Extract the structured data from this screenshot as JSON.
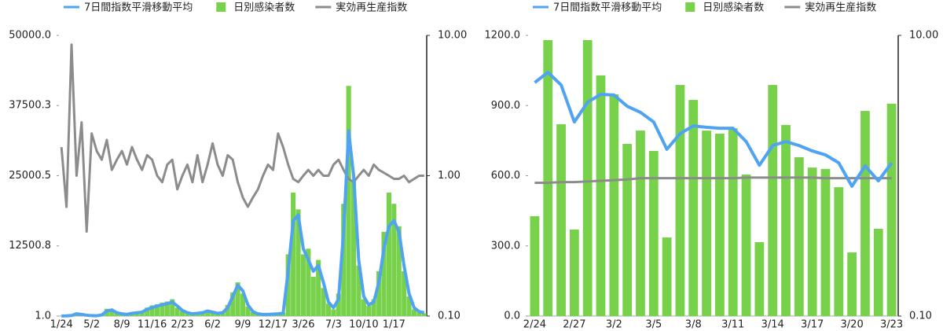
{
  "chart_data": [
    {
      "type": "bar_line_combo",
      "categories": [
        "1/24",
        null,
        null,
        null,
        null,
        null,
        "5/2",
        null,
        null,
        null,
        null,
        null,
        "8/9",
        null,
        null,
        null,
        null,
        null,
        "11/16",
        null,
        null,
        null,
        null,
        null,
        "2/23",
        null,
        null,
        null,
        null,
        null,
        "6/2",
        null,
        null,
        null,
        null,
        null,
        "9/9",
        null,
        null,
        null,
        null,
        null,
        "12/17",
        null,
        null,
        null,
        null,
        null,
        "3/26",
        null,
        null,
        null,
        null,
        null,
        "7/3",
        null,
        null,
        null,
        null,
        null,
        "10/10",
        null,
        null,
        null,
        null,
        null,
        "1/17",
        null,
        null,
        null,
        null,
        null,
        null
      ],
      "series": [
        {
          "name": "7日間指数平滑移動平均",
          "color": "#4fa3f0",
          "kind": "line",
          "values": [
            10,
            30,
            100,
            400,
            300,
            150,
            80,
            60,
            200,
            900,
            1100,
            600,
            400,
            300,
            500,
            600,
            700,
            1200,
            1500,
            1800,
            2000,
            2200,
            2500,
            1800,
            1000,
            600,
            400,
            500,
            600,
            900,
            700,
            500,
            600,
            1500,
            3500,
            5500,
            4500,
            2000,
            800,
            400,
            300,
            300,
            350,
            400,
            500,
            8000,
            17000,
            18000,
            12000,
            10000,
            8000,
            9000,
            6000,
            2500,
            1500,
            3000,
            15000,
            33000,
            25000,
            10000,
            3500,
            2000,
            2500,
            6000,
            12000,
            16000,
            17000,
            15000,
            9000,
            4000,
            1500,
            800,
            600
          ]
        },
        {
          "name": "日別感染者数",
          "color": "#77d14a",
          "kind": "bar",
          "values": [
            20,
            50,
            200,
            600,
            250,
            100,
            60,
            80,
            300,
            1300,
            1000,
            500,
            350,
            250,
            600,
            500,
            800,
            1500,
            1900,
            2100,
            2400,
            2600,
            3000,
            1500,
            900,
            500,
            350,
            600,
            500,
            1100,
            600,
            450,
            700,
            2000,
            4200,
            6000,
            4000,
            1700,
            700,
            350,
            250,
            350,
            300,
            450,
            600,
            11000,
            22000,
            19000,
            11000,
            12000,
            7000,
            10000,
            5000,
            2200,
            1200,
            4000,
            20000,
            41000,
            24000,
            9000,
            3000,
            1800,
            3000,
            8000,
            15000,
            22000,
            20000,
            16000,
            8000,
            3500,
            1200,
            700,
            500
          ]
        },
        {
          "name": "実効再生産指数",
          "color": "#8c8c8c",
          "kind": "line",
          "axis": "y2",
          "values": [
            1.6,
            0.6,
            8.6,
            1.0,
            2.4,
            0.4,
            2.0,
            1.5,
            1.3,
            1.8,
            1.1,
            1.3,
            1.5,
            1.2,
            1.6,
            1.3,
            1.1,
            1.4,
            1.3,
            1.0,
            0.9,
            1.2,
            1.3,
            0.8,
            1.0,
            1.2,
            0.9,
            1.4,
            0.9,
            1.2,
            1.7,
            1.2,
            1.0,
            1.4,
            1.3,
            0.9,
            0.7,
            0.6,
            0.7,
            0.8,
            1.0,
            1.2,
            1.1,
            2.0,
            1.6,
            1.2,
            0.95,
            0.9,
            1.0,
            1.1,
            1.0,
            1.1,
            1.0,
            1.0,
            1.2,
            1.3,
            1.1,
            0.95,
            0.9,
            1.0,
            1.1,
            1.0,
            1.2,
            1.1,
            1.05,
            1.0,
            0.95,
            0.95,
            1.0,
            0.9,
            0.95,
            1.0,
            1.0
          ]
        }
      ],
      "ylim": [
        1,
        50000
      ],
      "yticks": [
        {
          "value": 1,
          "label": "1.0"
        },
        {
          "value": 12500.8,
          "label": "12500.8"
        },
        {
          "value": 25000.5,
          "label": "25000.5"
        },
        {
          "value": 37500.3,
          "label": "37500.3"
        },
        {
          "value": 50000,
          "label": "50000.0"
        }
      ],
      "y2lim": [
        0.1,
        10
      ],
      "y2log": true,
      "y2ticks": [
        {
          "value": 0.1,
          "label": "0.10"
        },
        {
          "value": 1,
          "label": "1.00"
        },
        {
          "value": 10,
          "label": "10.00"
        }
      ],
      "legend": "top"
    },
    {
      "type": "bar_line_combo",
      "categories": [
        "2/24",
        null,
        null,
        "2/27",
        null,
        null,
        "3/2",
        null,
        null,
        "3/5",
        null,
        null,
        "3/8",
        null,
        null,
        "3/11",
        null,
        null,
        "3/14",
        null,
        null,
        "3/17",
        null,
        null,
        "3/20",
        null,
        null,
        "3/23"
      ],
      "series": [
        {
          "name": "7日間指数平滑移動平均",
          "color": "#4fa3f0",
          "kind": "line",
          "values": [
            998,
            1042,
            988,
            830,
            914,
            948,
            945,
            897,
            871,
            830,
            713,
            780,
            813,
            807,
            803,
            803,
            746,
            645,
            729,
            746,
            729,
            706,
            689,
            655,
            555,
            642,
            578,
            655
          ]
        },
        {
          "name": "日別感染者数",
          "color": "#77d14a",
          "kind": "bar",
          "values": [
            427,
            1180,
            820,
            370,
            1180,
            1029,
            948,
            736,
            793,
            706,
            336,
            988,
            924,
            793,
            780,
            803,
            605,
            316,
            988,
            817,
            679,
            635,
            629,
            551,
            272,
            877,
            373,
            908
          ]
        },
        {
          "name": "実効再生産指数",
          "color": "#8c8c8c",
          "kind": "line",
          "axis": "y2",
          "values": [
            0.89,
            0.89,
            0.9,
            0.9,
            0.91,
            0.92,
            0.93,
            0.94,
            0.96,
            0.96,
            0.96,
            0.96,
            0.96,
            0.96,
            0.96,
            0.96,
            0.97,
            0.97,
            0.97,
            0.97,
            0.97,
            0.97,
            0.96,
            0.96,
            0.96,
            0.96,
            0.96,
            0.96
          ]
        }
      ],
      "ylim": [
        0,
        1200
      ],
      "yticks": [
        {
          "value": 0,
          "label": "0.0"
        },
        {
          "value": 300,
          "label": "300.0"
        },
        {
          "value": 600,
          "label": "600.0"
        },
        {
          "value": 900,
          "label": "900.0"
        },
        {
          "value": 1200,
          "label": "1200.0"
        }
      ],
      "y2lim": [
        0.1,
        10
      ],
      "y2log": true,
      "y2ticks": [
        {
          "value": 0.1,
          "label": "0.10"
        },
        {
          "value": 10,
          "label": "10.00"
        }
      ],
      "legend": "top"
    }
  ]
}
